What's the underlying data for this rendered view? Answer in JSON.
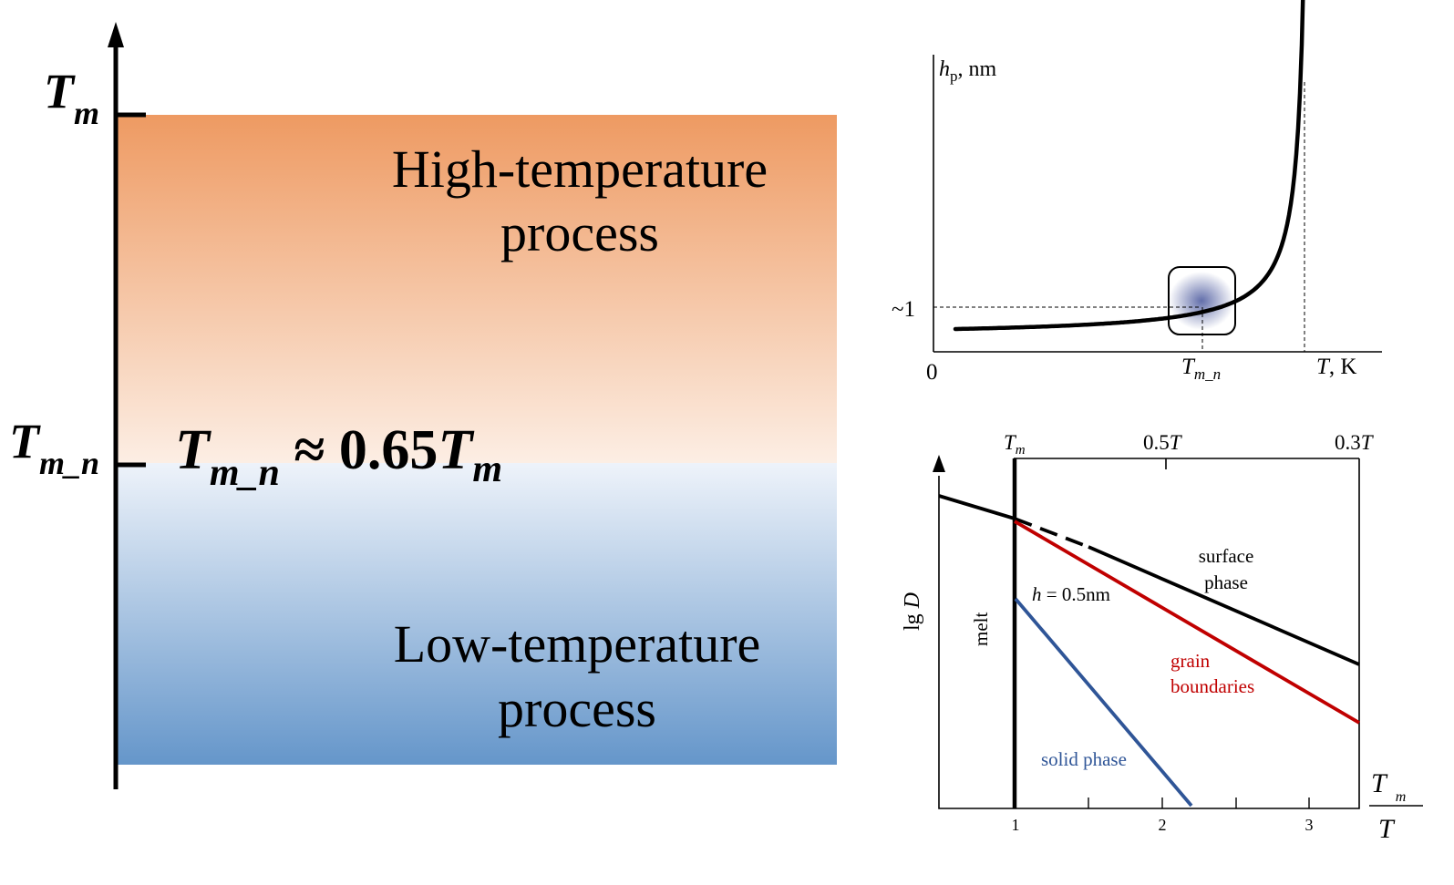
{
  "left_scale": {
    "tick_top": {
      "var": "T",
      "sub": "m"
    },
    "tick_mid": {
      "var": "T",
      "sub": "m_n"
    },
    "relation": {
      "var": "T",
      "sub": "m_n",
      "approx": " ≈ 0.65",
      "var2": "T",
      "sub2": "m"
    },
    "high_band": {
      "line1": "High-temperature",
      "line2": "process",
      "color_top": "#EE9A62",
      "color_bottom": "#FCEEE4"
    },
    "low_band": {
      "line1": "Low-temperature",
      "line2": "process",
      "color_top": "#EEF3FA",
      "color_bottom": "#6596CA"
    }
  },
  "chart_data": [
    {
      "type": "line",
      "ylabel": {
        "var": "h",
        "sub": "p",
        "unit": ", nm"
      },
      "xlabel": {
        "var": "T",
        "unit": ", K"
      },
      "origin_label": "0",
      "y_marker_label": "~1",
      "x_marker_label": {
        "var": "T",
        "sub": "m_n"
      },
      "series": [
        {
          "line_color": "#000000"
        }
      ],
      "highlight_color": "#2E3E8E"
    },
    {
      "type": "line",
      "ylabel": {
        "pre": "lg ",
        "var": "D"
      },
      "xlabel": {
        "num_var": "T",
        "num_sub": "m",
        "den_var": "T"
      },
      "x_ticks": [
        "1",
        "2",
        "3"
      ],
      "top_ticks": [
        {
          "var": "T",
          "sub": "m"
        },
        {
          "pre": "0.5",
          "var": "T"
        },
        {
          "pre": "0.3",
          "var": "T"
        }
      ],
      "melt_label": "melt",
      "h_label": {
        "var": "h",
        "rest": " = 0.5nm"
      },
      "series": [
        {
          "label_line1": "surface",
          "label_line2": "phase",
          "color": "#000000"
        },
        {
          "label_line1": "grain",
          "label_line2": "boundaries",
          "color": "#C00000"
        },
        {
          "label_line1": "solid phase",
          "label_line2": "",
          "color": "#2F5597"
        }
      ]
    }
  ]
}
